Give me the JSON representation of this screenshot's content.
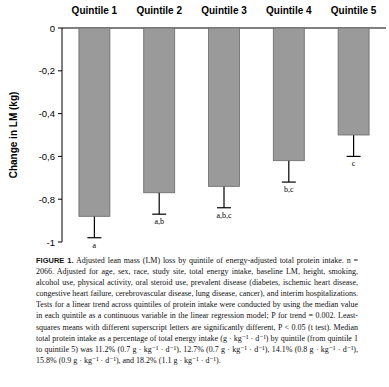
{
  "chart_data": {
    "type": "bar",
    "categories": [
      "Quintile 1",
      "Quintile 2",
      "Quintile 3",
      "Quintile 4",
      "Quintile 5"
    ],
    "values": [
      -0.88,
      -0.77,
      -0.74,
      -0.62,
      -0.5
    ],
    "errors": [
      0.1,
      0.1,
      0.1,
      0.1,
      0.1
    ],
    "annotations": [
      "a",
      "a,b",
      "a,b,c",
      "b,c",
      "c"
    ],
    "color": "#9a9a9a",
    "y_label": "Change in LM (kg)",
    "ylim": [
      -1,
      0
    ],
    "yticks": [
      0,
      {
        "value": -0.2,
        "label": "-0,2"
      },
      {
        "value": -0.4,
        "label": "-0,4"
      },
      {
        "value": -0.6,
        "label": "-0,6"
      },
      {
        "value": -0.8,
        "label": "-0,8"
      },
      -1
    ],
    "figure_label": "FIGURE 1.",
    "caption": "Adjusted lean mass (LM) loss by quintile of energy-adjusted total protein intake. n = 2066. Adjusted for age, sex, race, study site, total energy intake, baseline LM, height, smoking, alcohol use, physical activity, oral steroid use, prevalent disease (diabetes, ischemic heart disease, congestive heart failure, cerebrovascular disease, lung disease, cancer), and interim hospitalizations. Tests for a linear trend across quintiles of protein intake were conducted by using the median value in each quintile as a continuous variable in the linear regression model; P for trend = 0.002. Least-squares means with different superscript letters are significantly different, P < 0.05 (t test). Median total protein intake as a percentage of total energy intake (g · kg⁻¹ · d⁻¹) by quintile (from quintile 1 to quintile 5) was 11.2% (0.7 g · kg⁻¹ · d⁻¹), 12.7% (0.7 g · kg⁻¹ · d⁻¹), 14.1% (0.8 g · kg⁻¹ · d⁻¹), 15.8% (0.9 g · kg⁻¹ · d⁻¹), and 18.2% (1.1 g · kg⁻¹ · d⁻¹)."
  }
}
